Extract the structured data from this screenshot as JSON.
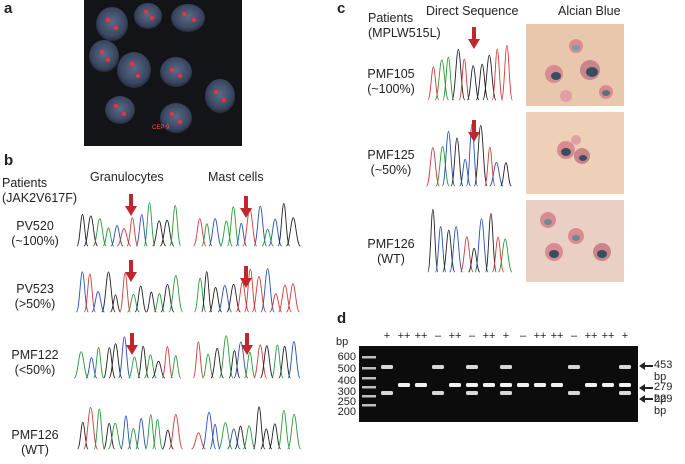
{
  "panel_a": {
    "letter": "a",
    "image_caption": "CEP 9"
  },
  "panel_b": {
    "letter": "b",
    "header_patients": "Patients",
    "header_mutation": "(JAK2V617F)",
    "col_granulocytes": "Granulocytes",
    "col_mast_cells": "Mast cells",
    "rows": [
      {
        "id": "PV520",
        "pct": "(~100%)",
        "arrow_gran": true,
        "arrow_mast": true
      },
      {
        "id": "PV523",
        "pct": "(>50%)",
        "arrow_gran": true,
        "arrow_mast": true
      },
      {
        "id": "PMF122",
        "pct": "(<50%)",
        "arrow_gran": true,
        "arrow_mast": true
      },
      {
        "id": "PMF126",
        "pct": "(WT)",
        "arrow_gran": false,
        "arrow_mast": false
      }
    ]
  },
  "panel_c": {
    "letter": "c",
    "header_patients": "Patients",
    "header_mutation": "(MPLW515L)",
    "col_direct": "Direct Sequence",
    "col_alcian": "Alcian Blue",
    "rows": [
      {
        "id": "PMF105",
        "pct": "(~100%)",
        "arrow": true
      },
      {
        "id": "PMF125",
        "pct": "(~50%)",
        "arrow": true
      },
      {
        "id": "PMF126",
        "pct": "(WT)",
        "arrow": false
      }
    ]
  },
  "panel_d": {
    "letter": "d",
    "axis_unit": "bp",
    "ladder": [
      "600",
      "500",
      "400",
      "300",
      "250",
      "200"
    ],
    "lane_labels": [
      "+",
      "++",
      "++",
      "–",
      "++",
      "–",
      "++",
      "+",
      "–",
      "++",
      "++",
      "–",
      "++",
      "++",
      "+"
    ],
    "band_labels": [
      "453 bp",
      "279 bp",
      "229 bp"
    ]
  },
  "colors": {
    "arrow_red": "#c0272d",
    "gel_bg": "#0c0c0c",
    "band": "#e6e6e6",
    "fish_bg": "#121418",
    "alcian_bg": "#e8c7ad"
  }
}
